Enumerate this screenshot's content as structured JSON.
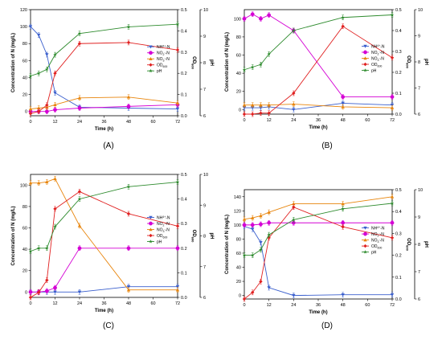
{
  "chart_data": [
    {
      "type": "line",
      "panel_label": "(A)",
      "xlabel": "Time (h)",
      "ylabel": "Concentration of N (mg/L)",
      "y2label": "OD600",
      "y3label": "pH",
      "x": [
        0,
        4,
        8,
        12,
        24,
        48,
        72
      ],
      "xticks": [
        "0",
        "12",
        "24",
        "36",
        "48",
        "60",
        "72"
      ],
      "xlim": [
        0,
        72
      ],
      "ylim": [
        -5,
        120
      ],
      "yticks": [
        "0",
        "20",
        "40",
        "60",
        "80",
        "100",
        "120"
      ],
      "y2lim": [
        0,
        0.5
      ],
      "y2ticks": [
        "0.0",
        "0.1",
        "0.2",
        "0.3",
        "0.4",
        "0.5"
      ],
      "y3lim": [
        6,
        10
      ],
      "y3ticks": [
        "6",
        "7",
        "8",
        "9",
        "10"
      ],
      "legend_position": "right",
      "series": [
        {
          "name": "NH4+-N",
          "legend_html": "NH<tspan font-size='3.5' dy='-1.5'>4</tspan><tspan font-size='3.5' dy='0'>+</tspan><tspan dy='1.5'>-N</tspan>",
          "axis": "left",
          "color": "#3a5fcd",
          "marker": "triangle-down",
          "values": [
            100,
            90,
            67,
            22,
            5,
            4,
            3
          ]
        },
        {
          "name": "NO2--N",
          "legend_html": "NO<tspan font-size='3.5' dy='1.5'>2</tspan><tspan font-size='3.5' dy='-3'>-</tspan><tspan dy='1.5'>-N</tspan>",
          "axis": "left",
          "color": "#d400d4",
          "marker": "circle",
          "values": [
            0,
            0,
            0,
            2,
            4,
            6,
            8
          ]
        },
        {
          "name": "NO3--N",
          "legend_html": "NO<tspan font-size='3.5' dy='1.5'>3</tspan><tspan font-size='3.5' dy='-3'>-</tspan><tspan dy='1.5'>-N</tspan>",
          "axis": "left",
          "color": "#e8850c",
          "marker": "triangle-up",
          "values": [
            3,
            4,
            5,
            8,
            16,
            17,
            10
          ]
        },
        {
          "name": "OD600",
          "legend_html": "OD<tspan font-size='3.5' dy='1.5'>600</tspan>",
          "axis": "right",
          "color": "#e02020",
          "marker": "diamond",
          "values": [
            0.01,
            0.02,
            0.05,
            0.2,
            0.34,
            0.345,
            0.31
          ]
        },
        {
          "name": "pH",
          "legend_html": "pH",
          "axis": "ph",
          "color": "#2e8b2e",
          "marker": "star",
          "values": [
            7.5,
            7.6,
            7.75,
            8.3,
            9.1,
            9.35,
            9.45
          ]
        }
      ]
    },
    {
      "type": "line",
      "panel_label": "(B)",
      "xlabel": "Time (h)",
      "ylabel": "Concentration of N (mg/L)",
      "y2label": "OD600",
      "y3label": "pH",
      "x": [
        0,
        4,
        8,
        12,
        24,
        48,
        72
      ],
      "xticks": [
        "0",
        "12",
        "24",
        "36",
        "48",
        "60",
        "72"
      ],
      "xlim": [
        0,
        72
      ],
      "ylim": [
        -5,
        110
      ],
      "yticks": [
        "0",
        "20",
        "40",
        "60",
        "80",
        "100"
      ],
      "y2lim": [
        0,
        0.5
      ],
      "y2ticks": [
        "0.0",
        "0.1",
        "0.2",
        "0.3",
        "0.4",
        "0.5"
      ],
      "y3lim": [
        6,
        10
      ],
      "y3ticks": [
        "6",
        "7",
        "8",
        "9",
        "10"
      ],
      "legend_position": "right",
      "series": [
        {
          "name": "NH4+-N",
          "legend_html": "NH<tspan font-size='3.5' dy='-1.5'>4</tspan><tspan font-size='3.5' dy='0'>+</tspan><tspan dy='1.5'>-N</tspan>",
          "axis": "left",
          "color": "#3a5fcd",
          "marker": "triangle-down",
          "values": [
            2,
            2,
            2,
            3,
            0,
            7,
            5
          ]
        },
        {
          "name": "NO2--N",
          "legend_html": "NO<tspan font-size='3.5' dy='1.5'>2</tspan><tspan font-size='3.5' dy='-3'>-</tspan><tspan dy='1.5'>-N</tspan>",
          "axis": "left",
          "color": "#d400d4",
          "marker": "circle",
          "values": [
            100,
            105,
            100,
            104,
            87,
            14,
            14
          ]
        },
        {
          "name": "NO3--N",
          "legend_html": "NO<tspan font-size='3.5' dy='1.5'>3</tspan><tspan font-size='3.5' dy='-3'>-</tspan><tspan dy='1.5'>-N</tspan>",
          "axis": "left",
          "color": "#e8850c",
          "marker": "triangle-up",
          "values": [
            5,
            5,
            5,
            5,
            6,
            3,
            2
          ]
        },
        {
          "name": "OD600",
          "legend_html": "OD<tspan font-size='3.5' dy='1.5'>600</tspan>",
          "axis": "right",
          "color": "#e02020",
          "marker": "diamond",
          "values": [
            0.0,
            0.0,
            0.005,
            0.005,
            0.1,
            0.42,
            0.27
          ]
        },
        {
          "name": "pH",
          "legend_html": "pH",
          "axis": "ph",
          "color": "#2e8b2e",
          "marker": "star",
          "values": [
            7.7,
            7.8,
            7.9,
            8.3,
            9.2,
            9.7,
            9.8
          ]
        }
      ]
    },
    {
      "type": "line",
      "panel_label": "(C)",
      "xlabel": "Time (h)",
      "ylabel": "Concentration of N (mg/L)",
      "y2label": "OD600",
      "y3label": "pH",
      "x": [
        0,
        4,
        8,
        12,
        24,
        48,
        72
      ],
      "xticks": [
        "0",
        "12",
        "24",
        "36",
        "48",
        "60",
        "72"
      ],
      "xlim": [
        0,
        72
      ],
      "ylim": [
        -5,
        110
      ],
      "yticks": [
        "0",
        "20",
        "40",
        "60",
        "80",
        "100"
      ],
      "y2lim": [
        0,
        0.5
      ],
      "y2ticks": [
        "0.0",
        "0.1",
        "0.2",
        "0.3",
        "0.4",
        "0.5"
      ],
      "y3lim": [
        6,
        10
      ],
      "y3ticks": [
        "6",
        "7",
        "8",
        "9",
        "10"
      ],
      "legend_position": "right",
      "series": [
        {
          "name": "NH4+-N",
          "legend_html": "NH<tspan font-size='3.5' dy='-1.5'>4</tspan><tspan font-size='3.5' dy='0'>+</tspan><tspan dy='1.5'>-N</tspan>",
          "axis": "left",
          "color": "#3a5fcd",
          "marker": "triangle-down",
          "values": [
            0,
            0,
            0,
            0,
            0,
            5,
            5
          ]
        },
        {
          "name": "NO2--N",
          "legend_html": "NO<tspan font-size='3.5' dy='1.5'>2</tspan><tspan font-size='3.5' dy='-3'>-</tspan><tspan dy='1.5'>-N</tspan>",
          "axis": "left",
          "color": "#d400d4",
          "marker": "circle",
          "values": [
            0,
            0,
            1,
            4,
            41,
            41,
            41
          ]
        },
        {
          "name": "NO3--N",
          "legend_html": "NO<tspan font-size='3.5' dy='1.5'>3</tspan><tspan font-size='3.5' dy='-3'>-</tspan><tspan dy='1.5'>-N</tspan>",
          "axis": "left",
          "color": "#e8850c",
          "marker": "triangle-up",
          "values": [
            102,
            102,
            103,
            106,
            62,
            2,
            2
          ]
        },
        {
          "name": "OD600",
          "legend_html": "OD<tspan font-size='3.5' dy='1.5'>600</tspan>",
          "axis": "right",
          "color": "#e02020",
          "marker": "diamond",
          "values": [
            0.0,
            0.02,
            0.07,
            0.36,
            0.43,
            0.34,
            0.29
          ]
        },
        {
          "name": "pH",
          "legend_html": "pH",
          "axis": "ph",
          "color": "#2e8b2e",
          "marker": "star",
          "values": [
            7.5,
            7.6,
            7.6,
            8.3,
            9.2,
            9.6,
            9.75
          ]
        }
      ]
    },
    {
      "type": "line",
      "panel_label": "(D)",
      "xlabel": "Time (h)",
      "ylabel": "Concentration of N (mg/L)",
      "y2label": "OD600",
      "y3label": "pH",
      "x": [
        0,
        4,
        8,
        12,
        24,
        48,
        72
      ],
      "xticks": [
        "0",
        "12",
        "24",
        "36",
        "48",
        "60",
        "72"
      ],
      "xlim": [
        0,
        72
      ],
      "ylim": [
        -5,
        150
      ],
      "yticks": [
        "0",
        "20",
        "40",
        "60",
        "80",
        "100",
        "120",
        "140"
      ],
      "y2lim": [
        0,
        0.5
      ],
      "y2ticks": [
        "0.0",
        "0.1",
        "0.2",
        "0.3",
        "0.4",
        "0.5"
      ],
      "y3lim": [
        6,
        10
      ],
      "y3ticks": [
        "6",
        "7",
        "8",
        "9",
        "10"
      ],
      "legend_position": "right",
      "series": [
        {
          "name": "NH4+-N",
          "legend_html": "NH<tspan font-size='3.5' dy='-1.5'>4</tspan><tspan font-size='3.5' dy='0'>+</tspan><tspan dy='1.5'>-N</tspan>",
          "axis": "left",
          "color": "#3a5fcd",
          "marker": "triangle-down",
          "values": [
            98,
            94,
            75,
            11,
            0,
            1,
            1
          ]
        },
        {
          "name": "NO2--N",
          "legend_html": "NO<tspan font-size='3.5' dy='1.5'>2</tspan><tspan font-size='3.5' dy='-3'>-</tspan><tspan dy='1.5'>-N</tspan>",
          "axis": "left",
          "color": "#d400d4",
          "marker": "circle",
          "values": [
            100,
            100,
            101,
            103,
            103,
            103,
            103
          ]
        },
        {
          "name": "NO3--N",
          "legend_html": "NO<tspan font-size='3.5' dy='1.5'>3</tspan><tspan font-size='3.5' dy='-3'>-</tspan><tspan dy='1.5'>-N</tspan>",
          "axis": "left",
          "color": "#e8850c",
          "marker": "triangle-up",
          "values": [
            108,
            110,
            113,
            118,
            130,
            130,
            140
          ]
        },
        {
          "name": "OD600",
          "legend_html": "OD<tspan font-size='3.5' dy='1.5'>600</tspan>",
          "axis": "right",
          "color": "#e02020",
          "marker": "diamond",
          "values": [
            0.0,
            0.03,
            0.08,
            0.28,
            0.42,
            0.33,
            0.28
          ]
        },
        {
          "name": "pH",
          "legend_html": "pH",
          "axis": "ph",
          "color": "#2e8b2e",
          "marker": "star",
          "values": [
            7.6,
            7.6,
            7.8,
            8.35,
            8.9,
            9.3,
            9.5
          ]
        }
      ]
    }
  ]
}
